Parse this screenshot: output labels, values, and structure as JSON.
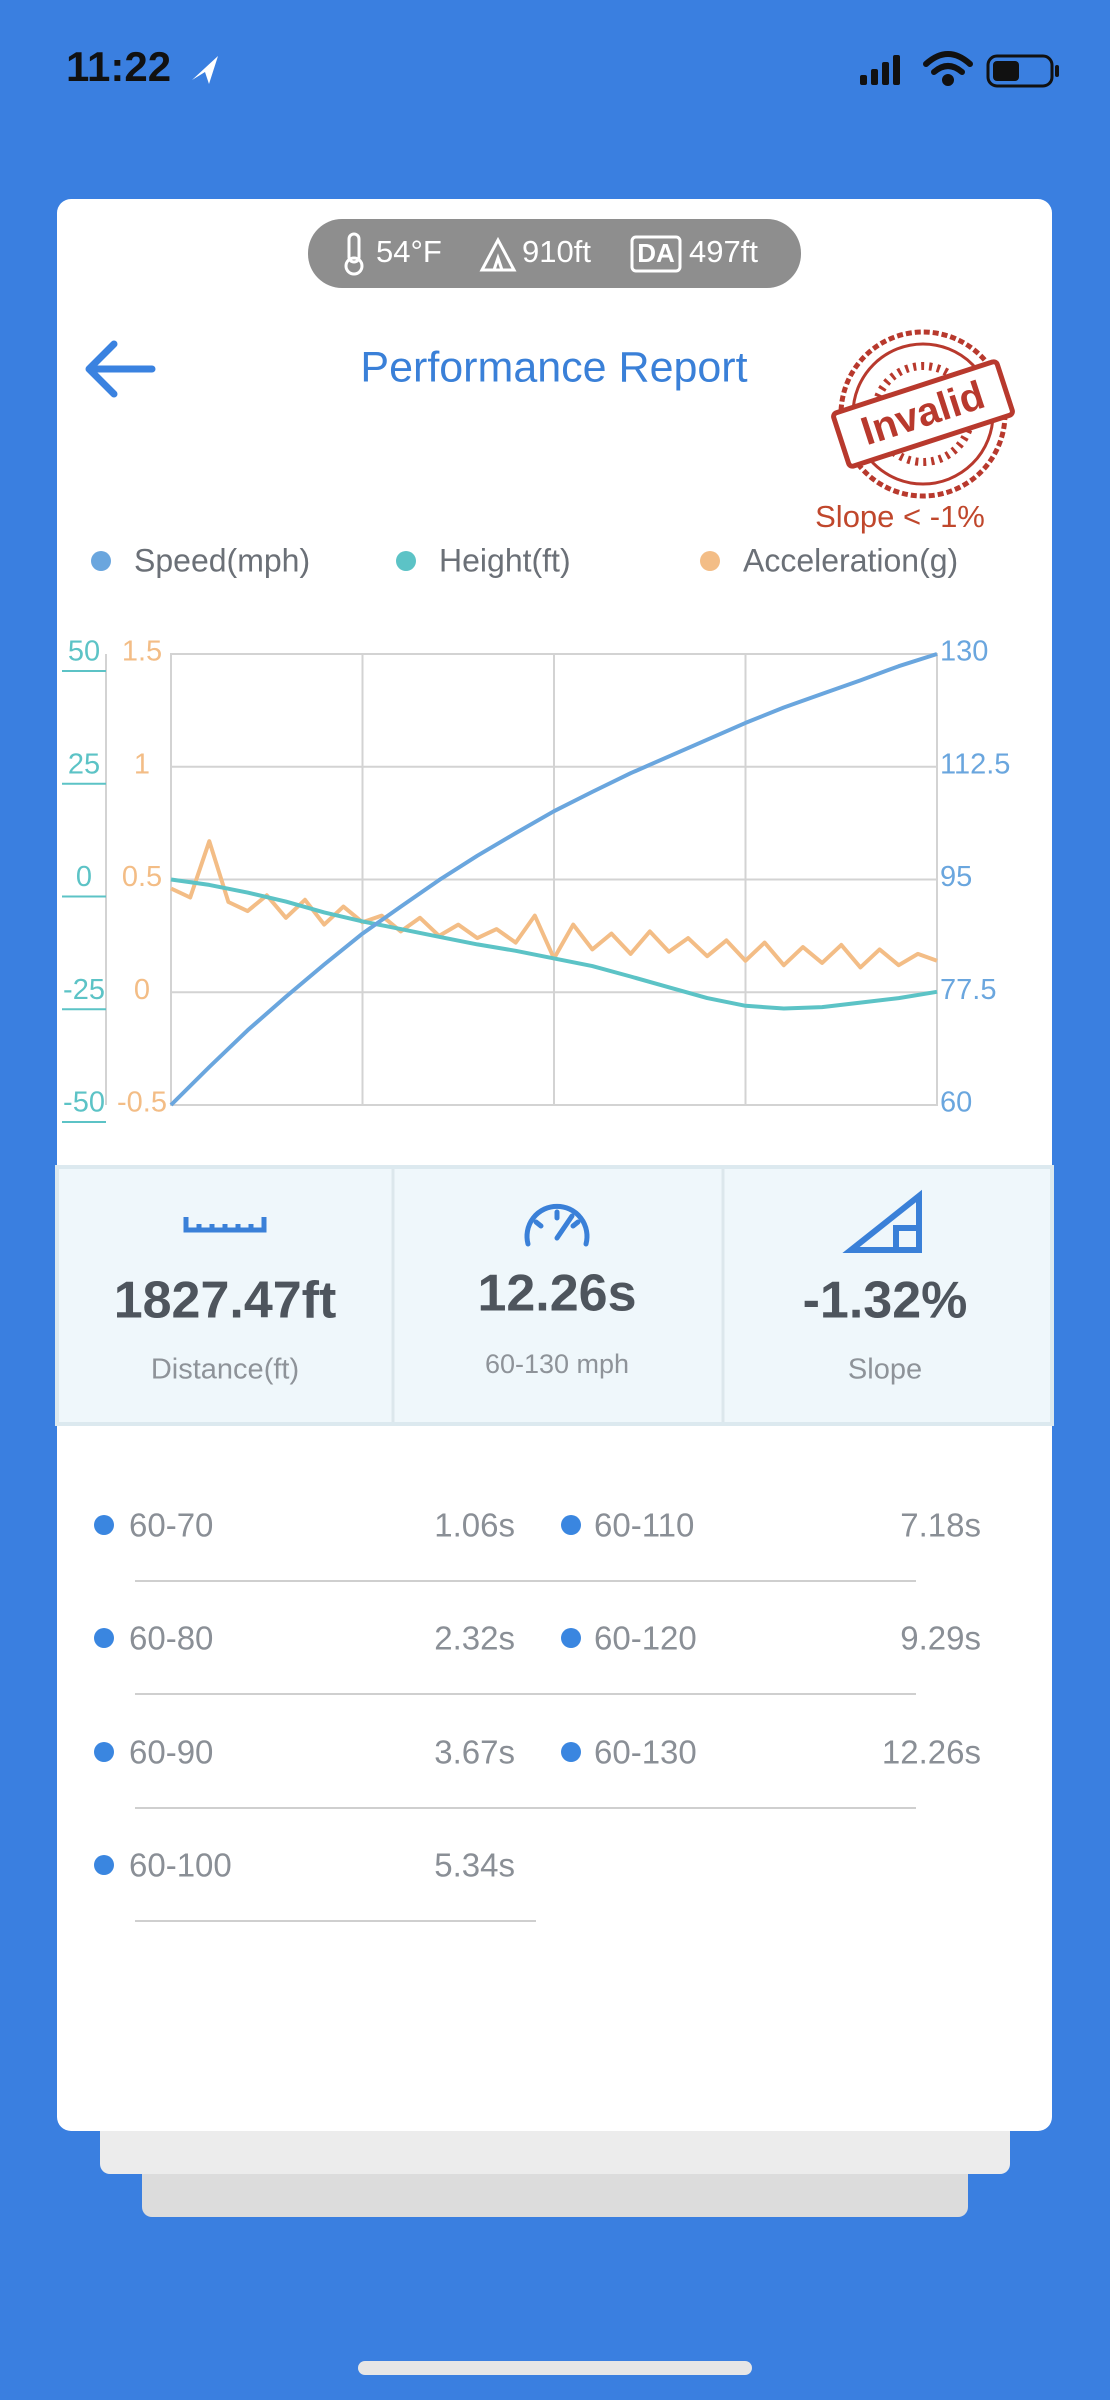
{
  "status_bar": {
    "time": "11:22"
  },
  "conditions": {
    "temperature": "54°F",
    "altitude": "910ft",
    "density_altitude_label": "DA",
    "density_altitude": "497ft"
  },
  "header": {
    "title": "Performance Report",
    "stamp": "Invalid",
    "warning": "Slope < -1%"
  },
  "chart_data": {
    "type": "line",
    "grid": true,
    "ylim": [
      -50,
      50
    ],
    "yticks": [
      -50,
      -25,
      0,
      25,
      50
    ],
    "y3lim": [
      -0.5,
      1.5
    ],
    "y3ticks": [
      -0.5,
      0,
      0.5,
      1,
      1.5
    ],
    "y2lim": [
      60,
      130
    ],
    "y2ticks": [
      60,
      77.5,
      95,
      112.5,
      130
    ],
    "series": [
      {
        "name": "Speed(mph)",
        "color": "#6aa6de",
        "axis": "y2",
        "values": [
          60,
          65.9,
          71.6,
          76.8,
          81.8,
          86.6,
          90.8,
          94.9,
          98.7,
          102.2,
          105.6,
          108.6,
          111.5,
          114.1,
          116.7,
          119.3,
          121.7,
          123.8,
          125.9,
          128.1,
          130
        ]
      },
      {
        "name": "Height(ft)",
        "color": "#5cc3c6",
        "axis": "y",
        "values": [
          0,
          -1.2,
          -2.9,
          -4.9,
          -7.3,
          -9.3,
          -11.0,
          -12.7,
          -14.4,
          -15.8,
          -17.5,
          -19.2,
          -21.5,
          -23.9,
          -26.3,
          -28.0,
          -28.6,
          -28.3,
          -27.3,
          -26.3,
          -24.9
        ]
      },
      {
        "name": "Acceleration(g)",
        "color": "#f3bd86",
        "axis": "y3",
        "values": [
          0.46,
          0.42,
          0.67,
          0.4,
          0.36,
          0.43,
          0.33,
          0.41,
          0.3,
          0.38,
          0.31,
          0.34,
          0.27,
          0.33,
          0.25,
          0.3,
          0.24,
          0.28,
          0.22,
          0.34,
          0.15,
          0.3,
          0.19,
          0.26,
          0.17,
          0.27,
          0.18,
          0.24,
          0.16,
          0.23,
          0.14,
          0.22,
          0.12,
          0.2,
          0.13,
          0.21,
          0.11,
          0.19,
          0.12,
          0.17,
          0.14
        ]
      }
    ]
  },
  "stats": [
    {
      "value": "1827.47ft",
      "label": "Distance(ft)"
    },
    {
      "value": "12.26s",
      "label": "60-130 mph"
    },
    {
      "value": "-1.32%",
      "label": "Slope"
    }
  ],
  "splits": [
    {
      "range": "60-70",
      "time": "1.06s"
    },
    {
      "range": "60-80",
      "time": "2.32s"
    },
    {
      "range": "60-90",
      "time": "3.67s"
    },
    {
      "range": "60-100",
      "time": "5.34s"
    },
    {
      "range": "60-110",
      "time": "7.18s"
    },
    {
      "range": "60-120",
      "time": "9.29s"
    },
    {
      "range": "60-130",
      "time": "12.26s"
    }
  ]
}
